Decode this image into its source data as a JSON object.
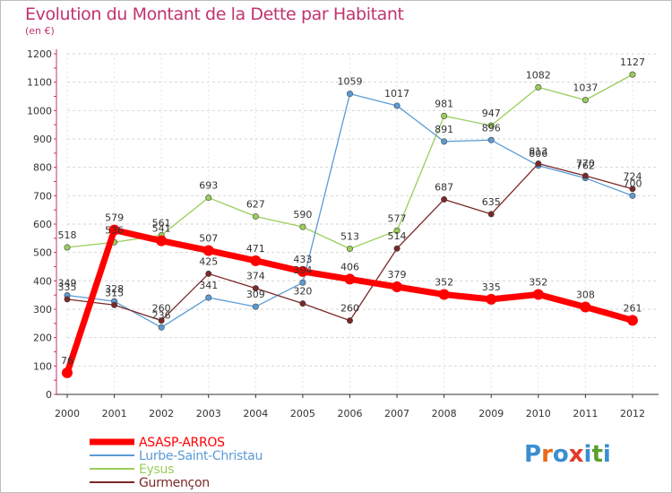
{
  "header": {
    "title": "Evolution du Montant de la Dette par Habitant",
    "subtitle": "(en €)"
  },
  "logo": {
    "text": "Proxiti",
    "colors": [
      "#3a8fd0",
      "#e86a1a",
      "#3a8fd0",
      "#e23a2a",
      "#3a8fd0",
      "#5aa02c",
      "#3a8fd0"
    ]
  },
  "chart_data": {
    "type": "line",
    "x": [
      "2000",
      "2001",
      "2002",
      "2003",
      "2004",
      "2005",
      "2006",
      "2007",
      "2008",
      "2009",
      "2010",
      "2011",
      "2012"
    ],
    "ylim": [
      0,
      1200
    ],
    "yticks": [
      0,
      100,
      200,
      300,
      400,
      500,
      600,
      700,
      800,
      900,
      1000,
      1100,
      1200
    ],
    "grid": "horizontal-dashed",
    "legend_position": "bottom-left",
    "series": [
      {
        "name": "ASASP-ARROS",
        "color": "#ff0000",
        "values": [
          76,
          579,
          541,
          507,
          471,
          433,
          406,
          379,
          352,
          335,
          352,
          308,
          261
        ]
      },
      {
        "name": "Lurbe-Saint-Christau",
        "color": "#5b9bd5",
        "values": [
          349,
          328,
          236,
          341,
          309,
          394,
          1059,
          1017,
          891,
          896,
          806,
          762,
          700
        ]
      },
      {
        "name": "Eysus",
        "color": "#9acd5b",
        "values": [
          518,
          536,
          561,
          693,
          627,
          590,
          513,
          577,
          981,
          947,
          1082,
          1037,
          1127
        ]
      },
      {
        "name": "Gurmençon",
        "color": "#7b2828",
        "values": [
          335,
          315,
          260,
          425,
          374,
          320,
          260,
          514,
          687,
          635,
          813,
          770,
          724
        ]
      }
    ]
  }
}
